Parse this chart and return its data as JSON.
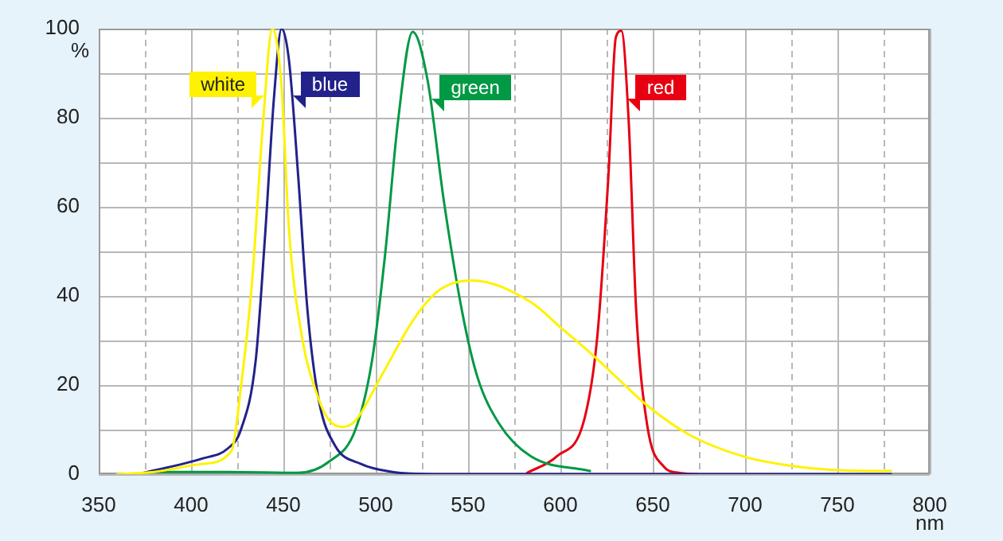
{
  "chart_data": {
    "type": "line",
    "xlabel": "nm",
    "ylabel": "%",
    "xlim": [
      350,
      800
    ],
    "xticks": [
      350,
      {
        "value": 375,
        "label": null
      },
      400,
      {
        "value": 425,
        "label": null
      },
      450,
      {
        "value": 475,
        "label": null
      },
      500,
      {
        "value": 525,
        "label": null
      },
      550,
      {
        "value": 575,
        "label": null
      },
      600,
      {
        "value": 625,
        "label": null
      },
      650,
      {
        "value": 675,
        "label": null
      },
      700,
      {
        "value": 725,
        "label": null
      },
      750,
      {
        "value": 775,
        "label": null
      },
      800
    ],
    "ylim": [
      0,
      100
    ],
    "yticks": [
      0,
      {
        "value": 10,
        "label": null
      },
      20,
      {
        "value": 30,
        "label": null
      },
      40,
      {
        "value": 50,
        "label": null
      },
      60,
      {
        "value": 70,
        "label": null
      },
      80,
      {
        "value": 90,
        "label": null
      },
      100
    ],
    "grid": true,
    "marker": "none",
    "line_style": "solid",
    "series": [
      {
        "name": "white",
        "color": "#fff200",
        "x": [
          360,
          380,
          406,
          422,
          427,
          433,
          439,
          444,
          449,
          453,
          460,
          469,
          475,
          482,
          489,
          503,
          521,
          535,
          552,
          584,
          601,
          616,
          630,
          647,
          670,
          699,
          728,
          756,
          779
        ],
        "values": [
          0,
          0.5,
          2.3,
          5.3,
          19.5,
          43,
          79,
          100,
          87,
          55,
          31,
          17,
          12,
          10.6,
          12,
          22,
          35,
          41.5,
          43.5,
          38.6,
          32.6,
          27.3,
          21.9,
          15.4,
          8.8,
          4,
          1.7,
          0.8,
          0.7
        ]
      },
      {
        "name": "blue",
        "color": "#22228a",
        "x": [
          371,
          406,
          420,
          427,
          435,
          440,
          445,
          449,
          453,
          458,
          463,
          469,
          478,
          492,
          509,
          531,
          600,
          700,
          779
        ],
        "values": [
          0,
          3.5,
          5.8,
          10,
          25.5,
          53,
          85,
          100,
          93,
          67,
          37,
          17,
          6.4,
          2.3,
          0.5,
          0,
          0,
          0,
          0
        ]
      },
      {
        "name": "green",
        "color": "#009944",
        "x": [
          378,
          420,
          458,
          475,
          489,
          498,
          505,
          512,
          520,
          528,
          537,
          547,
          555,
          567,
          584,
          616
        ],
        "values": [
          0.5,
          0.5,
          0.3,
          2.9,
          10,
          25.5,
          49,
          79,
          99.3,
          88.6,
          61,
          36,
          21.9,
          11.2,
          4,
          0.7
        ]
      },
      {
        "name": "red",
        "color": "#e60012",
        "x": [
          582,
          598,
          613,
          620,
          626,
          630,
          633,
          637,
          641,
          647,
          656,
          664,
          674
        ],
        "values": [
          0.3,
          4,
          12.4,
          31,
          67,
          98,
          99.5,
          79,
          37,
          11,
          1.7,
          0.3,
          0
        ]
      }
    ]
  }
}
